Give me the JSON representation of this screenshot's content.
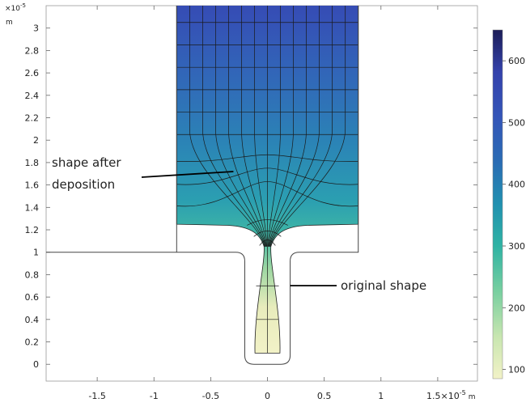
{
  "chart_data": {
    "type": "heatmap",
    "x_unit": "m",
    "y_unit": "m",
    "x_scale_label": "×10",
    "x_scale_exp": "-5",
    "y_scale_label": "×10",
    "y_scale_exp": "-5",
    "xlim": [
      -1.95,
      1.85
    ],
    "ylim": [
      -0.15,
      3.2
    ],
    "x_ticks": [
      -1.5,
      -1,
      -0.5,
      0,
      0.5,
      1,
      1.5
    ],
    "x_tick_labels": [
      "-1.5",
      "-1",
      "-0.5",
      "0",
      "0.5",
      "1",
      "1.5"
    ],
    "y_ticks": [
      0,
      0.2,
      0.4,
      0.6,
      0.8,
      1,
      1.2,
      1.4,
      1.6,
      1.8,
      2,
      2.2,
      2.4,
      2.6,
      2.8,
      3
    ],
    "y_tick_labels": [
      "0",
      "0.2",
      "0.4",
      "0.6",
      "0.8",
      "1",
      "1.2",
      "1.4",
      "1.6",
      "1.8",
      "2",
      "2.2",
      "2.4",
      "2.6",
      "2.8",
      "3"
    ],
    "colorbar": {
      "range": [
        85,
        650
      ],
      "ticks": [
        100,
        200,
        300,
        400,
        500,
        600
      ],
      "tick_labels": [
        "100",
        "200",
        "300",
        "400",
        "500",
        "600"
      ],
      "colors": [
        "#f2f2c7",
        "#c8e6b0",
        "#78cfa0",
        "#2fb3a4",
        "#2191b0",
        "#2a6cb4",
        "#3455b8",
        "#3442ac",
        "#1c1d57"
      ]
    },
    "original_shape": {
      "top_y": 1,
      "trench_bottom_y": 0,
      "trench_x": [
        -0.2,
        0.2
      ],
      "top_x": [
        -0.8,
        0.8
      ]
    },
    "deposited_region": {
      "surface_y_wide": 1.25,
      "top_y": 3.25,
      "x_range": [
        -0.8,
        0.8
      ],
      "neck_x": [
        -0.02,
        0.02
      ],
      "neck_y": 1.05,
      "bottom_plug_y": 0.1,
      "bottom_plug_x": [
        -0.1,
        0.1
      ]
    },
    "annotations": [
      {
        "text_lines": [
          "shape after",
          "deposition"
        ],
        "x": -1.85,
        "y": 1.75,
        "arrow_to": [
          -0.3,
          1.72
        ]
      },
      {
        "text_lines": [
          "original shape"
        ],
        "x": 0.7,
        "y": 0.75,
        "arrow_to": [
          0.2,
          0.75
        ]
      }
    ]
  }
}
